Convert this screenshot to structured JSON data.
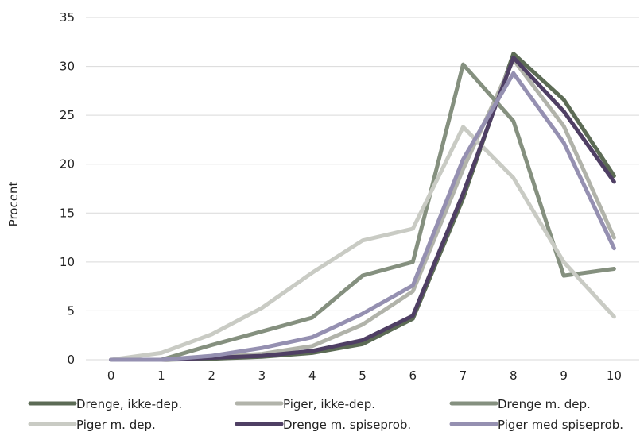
{
  "chart_data": {
    "type": "line",
    "ylabel": "Procent",
    "xlabel": "",
    "title": "",
    "ylim": [
      0,
      35
    ],
    "yticks": [
      0,
      5,
      10,
      15,
      20,
      25,
      30,
      35
    ],
    "x": [
      0,
      1,
      2,
      3,
      4,
      5,
      6,
      7,
      8,
      9,
      10
    ],
    "grid": "horizontal",
    "legend_position": "bottom",
    "series": [
      {
        "name": "Drenge, ikke-dep.",
        "color": "#5c6b55",
        "values": [
          0,
          0,
          0.1,
          0.3,
          0.7,
          1.6,
          4.2,
          16.5,
          31.3,
          26.6,
          18.8
        ]
      },
      {
        "name": "Piger, ikke-dep.",
        "color": "#b1b3aa",
        "values": [
          0,
          0,
          0.3,
          0.6,
          1.4,
          3.6,
          7.0,
          19.5,
          30.7,
          23.9,
          12.5
        ]
      },
      {
        "name": "Drenge m. dep.",
        "color": "#85907f",
        "values": [
          0,
          0,
          1.5,
          2.9,
          4.3,
          8.6,
          10.0,
          30.2,
          24.4,
          8.6,
          9.3
        ]
      },
      {
        "name": "Piger m. dep.",
        "color": "#c9cbc4",
        "values": [
          0,
          0.7,
          2.6,
          5.3,
          8.9,
          12.2,
          13.4,
          23.8,
          18.6,
          10.0,
          4.4
        ]
      },
      {
        "name": "Drenge m. spiseprob.",
        "color": "#4f3f64",
        "values": [
          0,
          0,
          0.2,
          0.4,
          0.9,
          2.0,
          4.5,
          17.0,
          30.9,
          25.4,
          18.2
        ]
      },
      {
        "name": "Piger med spiseprob.",
        "color": "#9590b1",
        "values": [
          0,
          0,
          0.4,
          1.2,
          2.3,
          4.7,
          7.6,
          20.5,
          29.3,
          22.2,
          11.4
        ]
      }
    ]
  }
}
